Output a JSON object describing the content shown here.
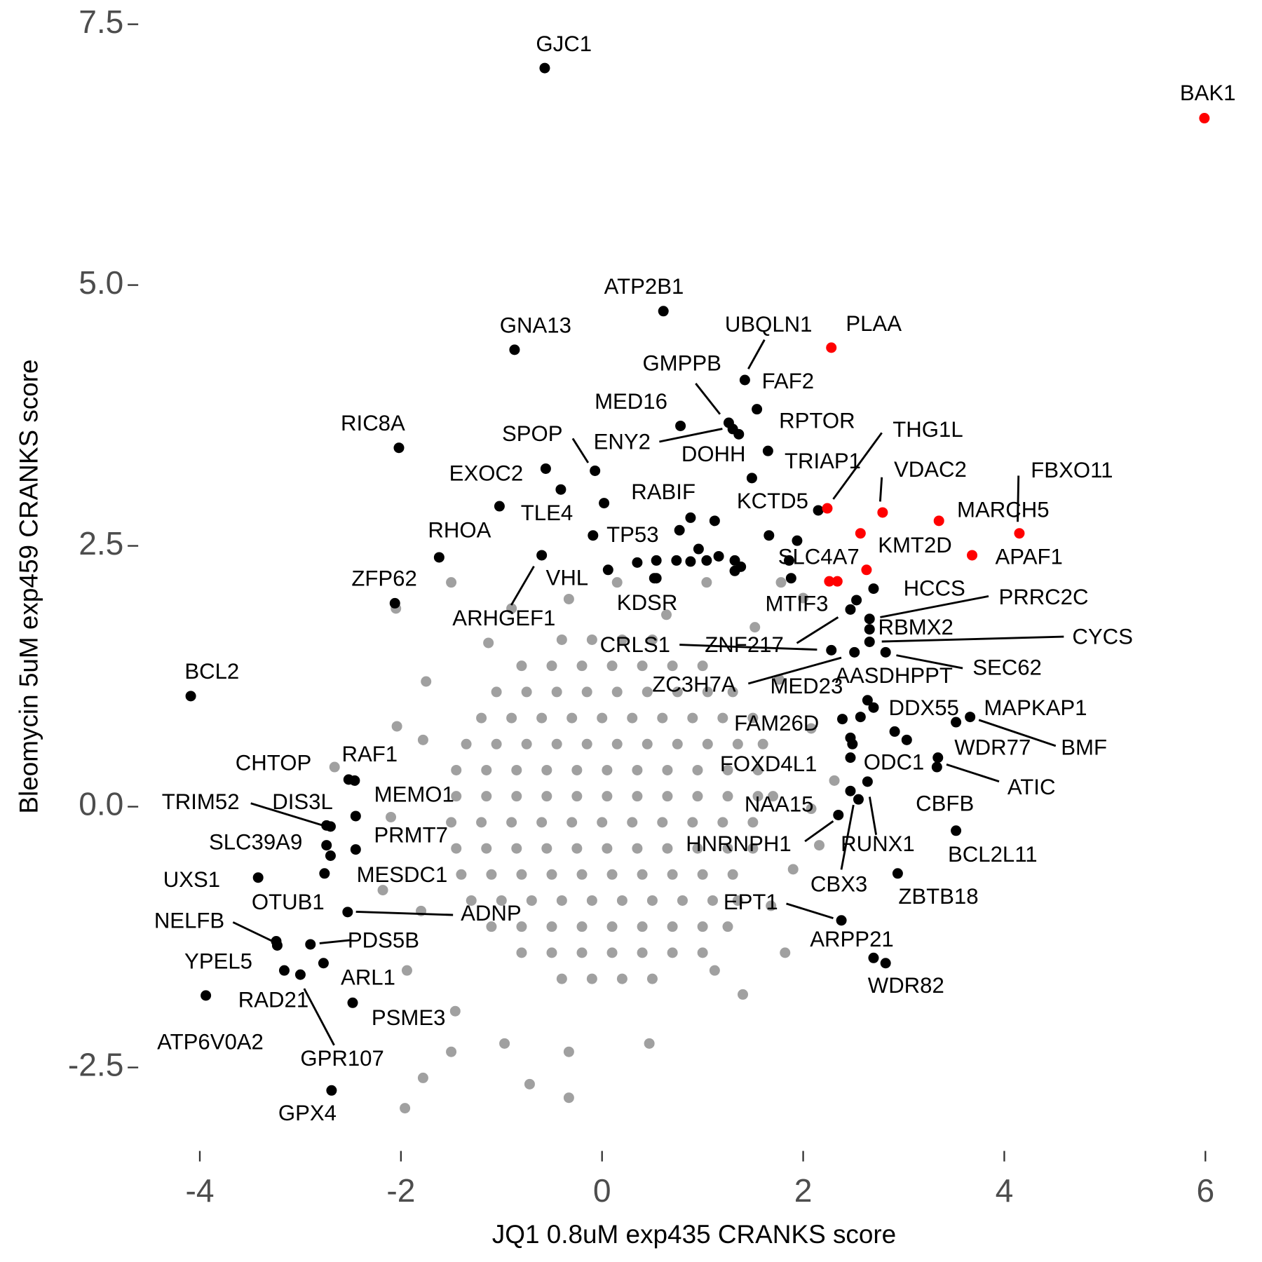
{
  "chart_data": {
    "type": "scatter",
    "x_label": "JQ1 0.8uM exp435 CRANKS score",
    "y_label": "Bleomycin 5uM exp459 CRANKS score",
    "xlim": [
      -4.5,
      6.2
    ],
    "ylim": [
      -3.3,
      7.65
    ],
    "xticks": [
      -4,
      -2,
      0,
      2,
      4,
      6
    ],
    "yticks": [
      -2.5,
      {
        "value": 0,
        "label": "0.0"
      },
      2.5,
      {
        "value": 5,
        "label": "5.0"
      },
      7.5
    ],
    "background": {
      "color": "#a0a0a0",
      "x": [
        -0.4,
        -0.1,
        0.2,
        0.5,
        -0.8,
        -0.5,
        -0.2,
        0.1,
        0.4,
        0.7,
        1.0,
        -1.05,
        -0.75,
        -0.45,
        -0.15,
        0.15,
        0.45,
        0.75,
        1.05,
        1.3,
        -1.2,
        -0.9,
        -0.6,
        -0.3,
        0,
        0.3,
        0.6,
        0.9,
        1.2,
        1.5,
        -1.35,
        -1.05,
        -0.75,
        -0.45,
        -0.15,
        0.15,
        0.45,
        0.75,
        1.05,
        1.35,
        1.6,
        -1.45,
        -1.15,
        -0.85,
        -0.55,
        -0.25,
        0.05,
        0.35,
        0.65,
        0.95,
        1.25,
        1.55,
        -1.45,
        -1.15,
        -0.85,
        -0.55,
        -0.25,
        0.05,
        0.35,
        0.65,
        0.95,
        1.25,
        1.55,
        1.7,
        -1.5,
        -1.2,
        -0.9,
        -0.6,
        -0.3,
        0,
        0.3,
        0.6,
        0.9,
        1.2,
        1.5,
        -1.45,
        -1.15,
        -0.85,
        -0.55,
        -0.25,
        0.05,
        0.35,
        0.65,
        0.95,
        1.25,
        1.5,
        -1.4,
        -1.1,
        -0.8,
        -0.5,
        -0.2,
        0.1,
        0.4,
        0.7,
        1.0,
        1.3,
        -1.3,
        -1.0,
        -0.7,
        -0.4,
        -0.1,
        0.2,
        0.5,
        0.8,
        1.1,
        1.35,
        -1.1,
        -0.8,
        -0.5,
        -0.2,
        0.1,
        0.4,
        0.7,
        1.0,
        1.25,
        -0.8,
        -0.5,
        -0.2,
        0.1,
        0.4,
        0.7,
        1.0,
        -0.4,
        -0.1,
        0.2,
        0.5,
        -2.05,
        -1.5,
        -2.66,
        -1.78,
        -1.96,
        -0.72,
        -0.33,
        -1.5,
        1.82,
        2.31,
        2.16,
        1.78,
        2.0,
        -2.04,
        -1.78,
        -2.1,
        -2.18,
        -1.94,
        -1.46,
        -1.13,
        1.04,
        1.52,
        1.76,
        2.08,
        1.68,
        1.12,
        0.47,
        -0.33,
        -0.97,
        2.08,
        -0.33,
        0.15,
        0.64,
        -1.75,
        -1.8,
        1.9,
        1.4,
        -0.9
      ],
      "y": [
        1.6,
        1.6,
        1.6,
        1.6,
        1.35,
        1.35,
        1.35,
        1.35,
        1.35,
        1.35,
        1.35,
        1.1,
        1.1,
        1.1,
        1.1,
        1.1,
        1.1,
        1.1,
        1.1,
        1.1,
        0.85,
        0.85,
        0.85,
        0.85,
        0.85,
        0.85,
        0.85,
        0.85,
        0.85,
        0.85,
        0.6,
        0.6,
        0.6,
        0.6,
        0.6,
        0.6,
        0.6,
        0.6,
        0.6,
        0.6,
        0.6,
        0.35,
        0.35,
        0.35,
        0.35,
        0.35,
        0.35,
        0.35,
        0.35,
        0.35,
        0.35,
        0.35,
        0.1,
        0.1,
        0.1,
        0.1,
        0.1,
        0.1,
        0.1,
        0.1,
        0.1,
        0.1,
        0.1,
        0.1,
        -0.15,
        -0.15,
        -0.15,
        -0.15,
        -0.15,
        -0.15,
        -0.15,
        -0.15,
        -0.15,
        -0.15,
        -0.15,
        -0.4,
        -0.4,
        -0.4,
        -0.4,
        -0.4,
        -0.4,
        -0.4,
        -0.4,
        -0.4,
        -0.4,
        -0.4,
        -0.65,
        -0.65,
        -0.65,
        -0.65,
        -0.65,
        -0.65,
        -0.65,
        -0.65,
        -0.65,
        -0.65,
        -0.9,
        -0.9,
        -0.9,
        -0.9,
        -0.9,
        -0.9,
        -0.9,
        -0.9,
        -0.9,
        -0.9,
        -1.15,
        -1.15,
        -1.15,
        -1.15,
        -1.15,
        -1.15,
        -1.15,
        -1.15,
        -1.15,
        -1.4,
        -1.4,
        -1.4,
        -1.4,
        -1.4,
        -1.4,
        -1.4,
        -1.65,
        -1.65,
        -1.65,
        -1.65,
        1.9,
        2.15,
        0.38,
        -2.6,
        -2.89,
        -2.66,
        -2.79,
        -2.35,
        -1.4,
        0.25,
        -0.37,
        2.15,
        2.0,
        0.77,
        0.64,
        -0.1,
        -0.8,
        -1.57,
        -1.96,
        1.57,
        2.15,
        1.72,
        1.22,
        0.75,
        -0.95,
        -1.57,
        -2.27,
        -2.35,
        -2.27,
        -0.02,
        1.99,
        2.15,
        1.84,
        1.2,
        -1.0,
        -0.6,
        -1.8,
        1.9
      ]
    },
    "hits": {
      "color": "#000000",
      "x": [
        -0.57,
        0.61,
        -0.87,
        1.42,
        1.54,
        0.78,
        1.26,
        1.3,
        1.36,
        1.65,
        1.49,
        -2.02,
        -0.07,
        -0.56,
        -0.41,
        0.02,
        2.15,
        -0.09,
        -1.62,
        -0.6,
        0.06,
        -2.06,
        1.86,
        0.52,
        2.47,
        2.7,
        2.66,
        2.66,
        2.66,
        2.82,
        2.28,
        2.53,
        2.51,
        2.39,
        2.64,
        2.7,
        3.66,
        3.52,
        2.57,
        2.91,
        2.47,
        3.03,
        3.34,
        3.33,
        2.47,
        2.64,
        2.35,
        2.55,
        3.52,
        2.94,
        2.38,
        2.7,
        2.82,
        -4.09,
        -2.52,
        -2.46,
        -2.45,
        -2.7,
        -2.74,
        -2.45,
        -2.74,
        -2.7,
        -3.42,
        -2.76,
        -2.53,
        -3.24,
        -2.9,
        -3.23,
        -2.77,
        -3.16,
        -3.0,
        -3.94,
        -2.48,
        -2.69,
        -1.02,
        0.88,
        1.12,
        0.77,
        1.66,
        1.94,
        0.96,
        0.35,
        0.54,
        0.74,
        0.88,
        1.04,
        1.16,
        1.32,
        1.38,
        1.32,
        1.88,
        0.54,
        2.49,
        2.47
      ],
      "y": [
        7.08,
        4.75,
        4.38,
        4.09,
        3.81,
        3.65,
        3.68,
        3.62,
        3.57,
        3.41,
        3.15,
        3.44,
        3.22,
        3.24,
        3.04,
        2.91,
        2.84,
        2.6,
        2.39,
        2.41,
        2.27,
        1.95,
        2.36,
        2.19,
        1.89,
        2.09,
        1.8,
        1.7,
        1.58,
        1.48,
        1.5,
        1.98,
        1.48,
        0.84,
        1.02,
        0.95,
        0.86,
        0.81,
        0.86,
        0.72,
        0.66,
        0.64,
        0.47,
        0.38,
        0.15,
        0.24,
        -0.08,
        0.07,
        -0.23,
        -0.64,
        -1.09,
        -1.45,
        -1.5,
        1.06,
        0.26,
        0.25,
        -0.09,
        -0.19,
        -0.18,
        -0.41,
        -0.37,
        -0.47,
        -0.68,
        -0.64,
        -1.01,
        -1.29,
        -1.32,
        -1.33,
        -1.5,
        -1.57,
        -1.61,
        -1.81,
        -1.88,
        -2.72,
        2.88,
        2.77,
        2.74,
        2.65,
        2.6,
        2.55,
        2.47,
        2.34,
        2.36,
        2.36,
        2.35,
        2.36,
        2.4,
        2.36,
        2.3,
        2.26,
        2.19,
        2.19,
        0.6,
        0.47
      ],
      "labels": [
        "GJC1",
        "ATP2B1",
        "GNA13",
        "UBQLN1",
        "FAF2",
        "MED16",
        "GMPPB",
        "ENY2",
        "DOHH",
        "RPTOR",
        "TRIAP1",
        "RIC8A",
        "SPOP",
        "EXOC2",
        "TLE4",
        "RABIF",
        "KCTD5",
        "TP53",
        "RHOA",
        "ARHGEF1",
        "VHL",
        "ZFP62",
        "SLC4A7",
        "KDSR",
        "MTIF3",
        "HCCS",
        "PRRC2C",
        "RBMX2",
        "CYCS",
        "SEC62",
        "CRLS1",
        "ZNF217",
        "ZC3H7A",
        "MED23",
        "AASDHPPT",
        "DDX55",
        "MAPKAP1",
        "BMF",
        "FAM26D",
        "WDR77",
        "FOXD4L1",
        "ODC1",
        "ATIC",
        "CBFB",
        "NAA15",
        "RUNX1",
        "HNRNPH1",
        "CBX3",
        "BCL2L11",
        "ZBTB18",
        "EPT1",
        "ARPP21",
        "WDR82",
        "BCL2",
        "CHTOP",
        "RAF1",
        "MEMO1",
        "DIS3L",
        "TRIM52",
        "PRMT7",
        "SLC39A9",
        "MESDC1",
        "UXS1",
        "OTUB1",
        "ADNP",
        "NELFB",
        "PDS5B",
        "YPEL5",
        "ARL1",
        "RAD21",
        "GPR107",
        "ATP6V0A2",
        "PSME3",
        "GPX4",
        null,
        null,
        null,
        null,
        null,
        null,
        null,
        null,
        null,
        null,
        null,
        null,
        null,
        null,
        null,
        null,
        null,
        null,
        null,
        null
      ]
    },
    "highlight": {
      "color": "#ff0000",
      "x": [
        5.99,
        2.28,
        2.24,
        2.79,
        3.35,
        4.15,
        2.57,
        3.68,
        2.63,
        2.26,
        2.34
      ],
      "y": [
        6.6,
        4.4,
        2.86,
        2.82,
        2.74,
        2.62,
        2.62,
        2.41,
        2.27,
        2.16,
        2.16
      ],
      "labels": [
        "BAK1",
        "PLAA",
        "THG1L",
        "VDAC2",
        "MARCH5",
        "FBXO11",
        "KMT2D",
        "APAF1",
        null,
        null,
        null
      ]
    }
  }
}
